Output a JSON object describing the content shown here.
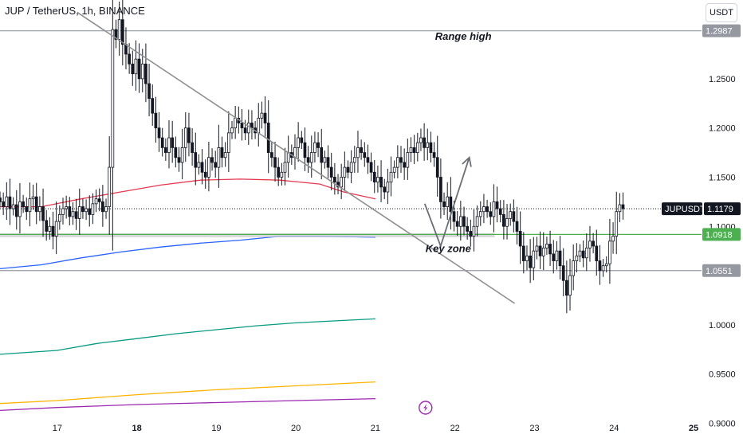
{
  "header": {
    "symbol_line": "JUP / TetherUS, 1h, BINANCE",
    "currency_button": "USDT"
  },
  "colors": {
    "up": "#131722",
    "down": "#131722",
    "ma_red": "#e53950",
    "ma_blue": "#2962ff",
    "ma_green": "#089981",
    "ma_orange": "#ffb300",
    "ma_purple": "#9c27b0",
    "level_line": "#9598a1",
    "key_zone_line": "#4caf50",
    "trend_line": "#8f8f8f"
  },
  "chart_data": {
    "type": "candlestick",
    "y_axis": {
      "min": 0.885,
      "max": 1.33,
      "ticks": [
        1.25,
        1.2,
        1.15,
        1.1,
        1.0,
        0.95,
        0.9
      ],
      "tick_labels": [
        "1.2500",
        "1.2000",
        "1.1500",
        "1.1000",
        "1.0000",
        "0.9500",
        "0.9000"
      ]
    },
    "x_axis": {
      "labels": [
        {
          "text": "17",
          "day": 17,
          "bold": false
        },
        {
          "text": "18",
          "day": 18,
          "bold": true
        },
        {
          "text": "19",
          "day": 19,
          "bold": false
        },
        {
          "text": "20",
          "day": 20,
          "bold": false
        },
        {
          "text": "21",
          "day": 21,
          "bold": false
        },
        {
          "text": "22",
          "day": 22,
          "bold": false
        },
        {
          "text": "23",
          "day": 23,
          "bold": false
        },
        {
          "text": "24",
          "day": 24,
          "bold": false
        },
        {
          "text": "25",
          "day": 25,
          "bold": true
        }
      ],
      "day_start": 16.28,
      "day_end": 25.0
    },
    "candles_start_day": 16.28,
    "candle_hours": 1,
    "closes": [
      1.125,
      1.12,
      1.13,
      1.118,
      1.122,
      1.11,
      1.125,
      1.12,
      1.115,
      1.128,
      1.13,
      1.115,
      1.12,
      1.106,
      1.095,
      1.1,
      1.09,
      1.105,
      1.112,
      1.118,
      1.12,
      1.11,
      1.115,
      1.108,
      1.12,
      1.115,
      1.118,
      1.112,
      1.123,
      1.128,
      1.125,
      1.115,
      1.12,
      1.16,
      1.3,
      1.29,
      1.31,
      1.285,
      1.275,
      1.265,
      1.255,
      1.27,
      1.25,
      1.265,
      1.245,
      1.23,
      1.215,
      1.2,
      1.19,
      1.18,
      1.175,
      1.19,
      1.18,
      1.17,
      1.165,
      1.18,
      1.2,
      1.185,
      1.175,
      1.16,
      1.165,
      1.155,
      1.15,
      1.17,
      1.165,
      1.16,
      1.18,
      1.17,
      1.175,
      1.195,
      1.2,
      1.21,
      1.205,
      1.2,
      1.195,
      1.205,
      1.2,
      1.195,
      1.21,
      1.215,
      1.205,
      1.175,
      1.17,
      1.16,
      1.15,
      1.155,
      1.165,
      1.175,
      1.17,
      1.18,
      1.19,
      1.185,
      1.17,
      1.165,
      1.175,
      1.185,
      1.18,
      1.165,
      1.17,
      1.16,
      1.15,
      1.145,
      1.14,
      1.15,
      1.16,
      1.155,
      1.165,
      1.17,
      1.18,
      1.175,
      1.17,
      1.165,
      1.155,
      1.145,
      1.15,
      1.14,
      1.135,
      1.145,
      1.155,
      1.16,
      1.17,
      1.165,
      1.16,
      1.175,
      1.18,
      1.175,
      1.185,
      1.19,
      1.18,
      1.185,
      1.175,
      1.17,
      1.15,
      1.125,
      1.12,
      1.13,
      1.115,
      1.105,
      1.1,
      1.11,
      1.1,
      1.095,
      1.09,
      1.1,
      1.11,
      1.115,
      1.12,
      1.115,
      1.11,
      1.125,
      1.118,
      1.112,
      1.1,
      1.108,
      1.115,
      1.105,
      1.095,
      1.08,
      1.065,
      1.07,
      1.058,
      1.075,
      1.08,
      1.07,
      1.078,
      1.082,
      1.072,
      1.065,
      1.075,
      1.06,
      1.045,
      1.03,
      1.05,
      1.065,
      1.07,
      1.075,
      1.068,
      1.078,
      1.085,
      1.08,
      1.065,
      1.055,
      1.06,
      1.062,
      1.085,
      1.09,
      1.115,
      1.122,
      1.118
    ],
    "moving_averages": [
      {
        "color_key": "ma_red",
        "points": [
          [
            16.28,
            1.12
          ],
          [
            16.8,
            1.12
          ],
          [
            17.3,
            1.128
          ],
          [
            17.8,
            1.135
          ],
          [
            18.3,
            1.142
          ],
          [
            18.8,
            1.147
          ],
          [
            19.3,
            1.148
          ],
          [
            19.8,
            1.147
          ],
          [
            20.3,
            1.143
          ],
          [
            20.6,
            1.135
          ],
          [
            21.0,
            1.128
          ]
        ]
      },
      {
        "color_key": "ma_blue",
        "points": [
          [
            16.28,
            1.057
          ],
          [
            16.8,
            1.061
          ],
          [
            17.3,
            1.068
          ],
          [
            17.8,
            1.074
          ],
          [
            18.3,
            1.079
          ],
          [
            18.8,
            1.083
          ],
          [
            19.3,
            1.086
          ],
          [
            19.8,
            1.09
          ],
          [
            20.3,
            1.09
          ],
          [
            21.0,
            1.089
          ]
        ]
      },
      {
        "color_key": "ma_green",
        "points": [
          [
            16.28,
            0.97
          ],
          [
            17.0,
            0.974
          ],
          [
            17.5,
            0.981
          ],
          [
            18.0,
            0.986
          ],
          [
            18.5,
            0.991
          ],
          [
            19.0,
            0.995
          ],
          [
            19.5,
            0.999
          ],
          [
            20.0,
            1.002
          ],
          [
            21.0,
            1.006
          ]
        ]
      },
      {
        "color_key": "ma_orange",
        "points": [
          [
            16.28,
            0.92
          ],
          [
            17.0,
            0.923
          ],
          [
            18.0,
            0.929
          ],
          [
            19.0,
            0.934
          ],
          [
            20.0,
            0.938
          ],
          [
            21.0,
            0.942
          ]
        ]
      },
      {
        "color_key": "ma_purple",
        "points": [
          [
            16.28,
            0.913
          ],
          [
            17.0,
            0.916
          ],
          [
            18.0,
            0.919
          ],
          [
            19.0,
            0.921
          ],
          [
            20.0,
            0.923
          ],
          [
            21.0,
            0.925
          ]
        ]
      }
    ],
    "horizontal_levels": [
      {
        "value": 1.2987,
        "label": "1.2987",
        "color_key": "level_line",
        "tag_bg": "#9598a1",
        "tag_fg": "#ffffff"
      },
      {
        "value": 1.0551,
        "label": "1.0551",
        "color_key": "level_line",
        "tag_bg": "#9598a1",
        "tag_fg": "#ffffff"
      },
      {
        "value": 1.0918,
        "label": "1.0918",
        "color_key": "key_zone_line",
        "tag_bg": "#4caf50",
        "tag_fg": "#ffffff"
      }
    ],
    "current_price": {
      "symbol": "JUPUSDT",
      "value": 1.1179,
      "label": "1.1179"
    },
    "trend_line": {
      "from": [
        17.25,
        1.3175
      ],
      "to": [
        22.75,
        1.0218
      ]
    },
    "key_zone_band": {
      "from_day": 16.28,
      "to_day": 22.5,
      "value": 1.091
    },
    "projection_path": [
      [
        21.62,
        1.123
      ],
      [
        21.82,
        1.08
      ],
      [
        22.18,
        1.17
      ]
    ],
    "annotations": [
      {
        "text": "Range high",
        "day": 21.75,
        "value": 1.2895
      },
      {
        "text": "Key zone",
        "day": 21.63,
        "value": 1.074
      }
    ],
    "event_icon_day": 21.63
  }
}
